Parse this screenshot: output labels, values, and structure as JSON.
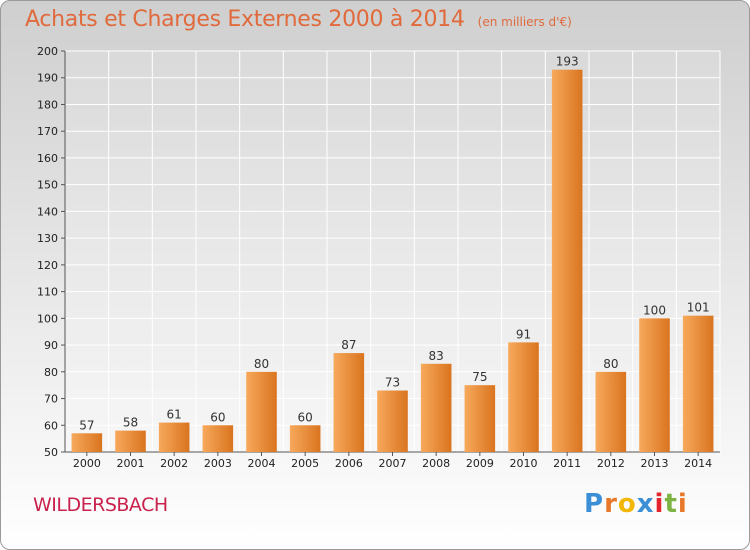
{
  "header": {
    "title": "Achats et Charges Externes 2000 à 2014",
    "subtitle": "(en milliers d'€)"
  },
  "footer": {
    "commune": "WILDERSBACH",
    "brand": "Proxiti"
  },
  "colors": {
    "title": "#e06a3c",
    "commune": "#c9224c",
    "bar_light": "#f7a95c",
    "bar_dark": "#d9741f",
    "brand_letters": [
      "#3a8fd6",
      "#e8792b",
      "#f2b705",
      "#3a8fd6",
      "#e3262d",
      "#7cb342",
      "#e8792b"
    ]
  },
  "chart_data": {
    "type": "bar",
    "categories": [
      "2000",
      "2001",
      "2002",
      "2003",
      "2004",
      "2005",
      "2006",
      "2007",
      "2008",
      "2009",
      "2010",
      "2011",
      "2012",
      "2013",
      "2014"
    ],
    "values": [
      57,
      58,
      61,
      60,
      80,
      60,
      87,
      73,
      83,
      75,
      91,
      193,
      80,
      100,
      101
    ],
    "ylim": [
      50,
      200
    ],
    "yticks": [
      50,
      60,
      70,
      80,
      90,
      100,
      110,
      120,
      130,
      140,
      150,
      160,
      170,
      180,
      190,
      200
    ],
    "grid": true,
    "data_labels": true
  }
}
